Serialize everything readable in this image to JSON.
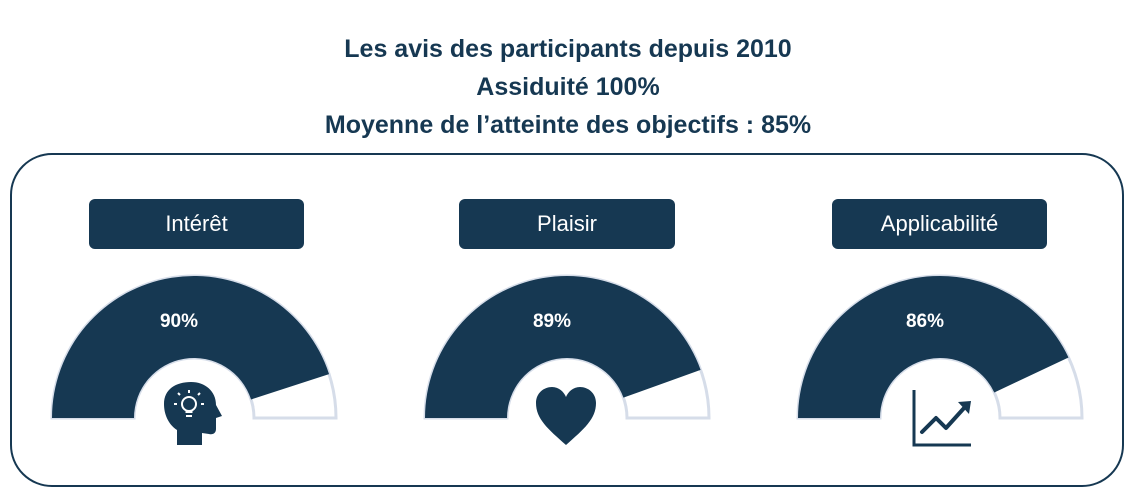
{
  "header": {
    "title": "Les avis des participants depuis 2010",
    "assiduite": "Assiduité 100%",
    "moyenne": "Moyenne de l’atteinte des objectifs : 85%"
  },
  "colors": {
    "primary": "#163852",
    "track": "#ffffff",
    "track_border": "#d6dde9"
  },
  "chart_data": {
    "type": "gauge",
    "gauges": [
      {
        "category": "Intérêt",
        "value": 90,
        "value_label": "90%",
        "icon": "head-lightbulb-icon"
      },
      {
        "category": "Plaisir",
        "value": 89,
        "value_label": "89%",
        "icon": "heart-icon"
      },
      {
        "category": "Applicabilité",
        "value": 86,
        "value_label": "86%",
        "icon": "trend-chart-icon"
      }
    ],
    "range": [
      0,
      100
    ]
  }
}
